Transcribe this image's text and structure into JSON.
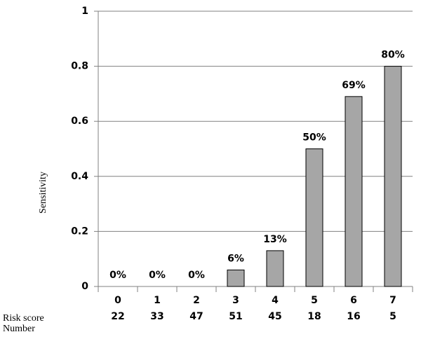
{
  "chart_data": {
    "type": "bar",
    "y_label": "Sensitivity",
    "category_label": "Risk score",
    "counts_label": "Number",
    "categories": [
      "0",
      "1",
      "2",
      "3",
      "4",
      "5",
      "6",
      "7"
    ],
    "counts": [
      22,
      33,
      47,
      51,
      45,
      18,
      16,
      5
    ],
    "values": [
      0,
      0,
      0,
      0.06,
      0.13,
      0.5,
      0.69,
      0.8
    ],
    "value_labels": [
      "0%",
      "0%",
      "0%",
      "6%",
      "13%",
      "50%",
      "69%",
      "80%"
    ],
    "color": "#a6a6a6",
    "ylim": [
      0,
      1
    ],
    "yticks": [
      0,
      0.2,
      0.4,
      0.6,
      0.8,
      1
    ],
    "grid": true
  }
}
